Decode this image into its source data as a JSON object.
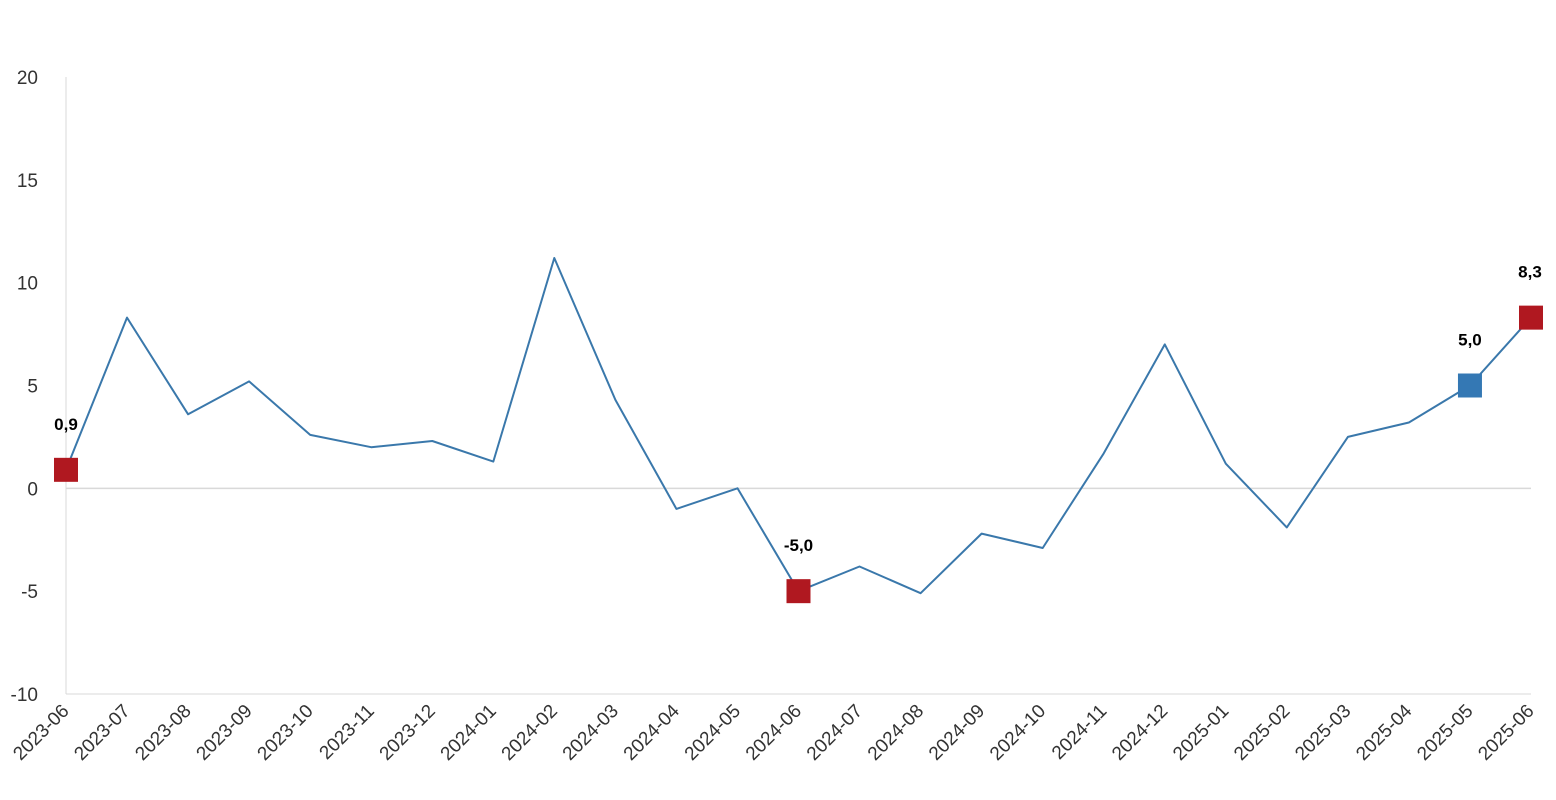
{
  "chart_data": {
    "type": "line",
    "x": [
      "2023-06",
      "2023-07",
      "2023-08",
      "2023-09",
      "2023-10",
      "2023-11",
      "2023-12",
      "2024-01",
      "2024-02",
      "2024-03",
      "2024-04",
      "2024-05",
      "2024-06",
      "2024-07",
      "2024-08",
      "2024-09",
      "2024-10",
      "2024-11",
      "2024-12",
      "2025-01",
      "2025-02",
      "2025-03",
      "2025-04",
      "2025-05",
      "2025-06"
    ],
    "series": [
      {
        "values": [
          0.9,
          8.3,
          3.6,
          5.2,
          2.6,
          2.0,
          2.3,
          1.3,
          11.2,
          4.3,
          -1.0,
          0.0,
          -5.0,
          -3.8,
          -5.1,
          -2.2,
          -2.9,
          1.7,
          7.0,
          1.2,
          -1.9,
          2.5,
          3.2,
          5.0,
          8.3
        ],
        "color": "#3a78ab"
      }
    ],
    "highlights": [
      {
        "x": "2023-06",
        "value": 0.9,
        "label": "0,9",
        "color": "#b01820"
      },
      {
        "x": "2024-06",
        "value": -5.0,
        "label": "-5,0",
        "color": "#b01820"
      },
      {
        "x": "2025-05",
        "value": 5.0,
        "label": "5,0",
        "color": "#3478b4"
      },
      {
        "x": "2025-06",
        "value": 8.3,
        "label": "8,3",
        "color": "#b01820"
      }
    ],
    "yticks": [
      "20",
      "15",
      "10",
      "5",
      "0",
      "-5",
      "-10"
    ],
    "ylim": [
      -10,
      20
    ],
    "title": "",
    "xlabel": "",
    "ylabel": "",
    "grid": false,
    "zero_line_color": "#d9d9d9",
    "axis_color": "#d9d9d9"
  }
}
